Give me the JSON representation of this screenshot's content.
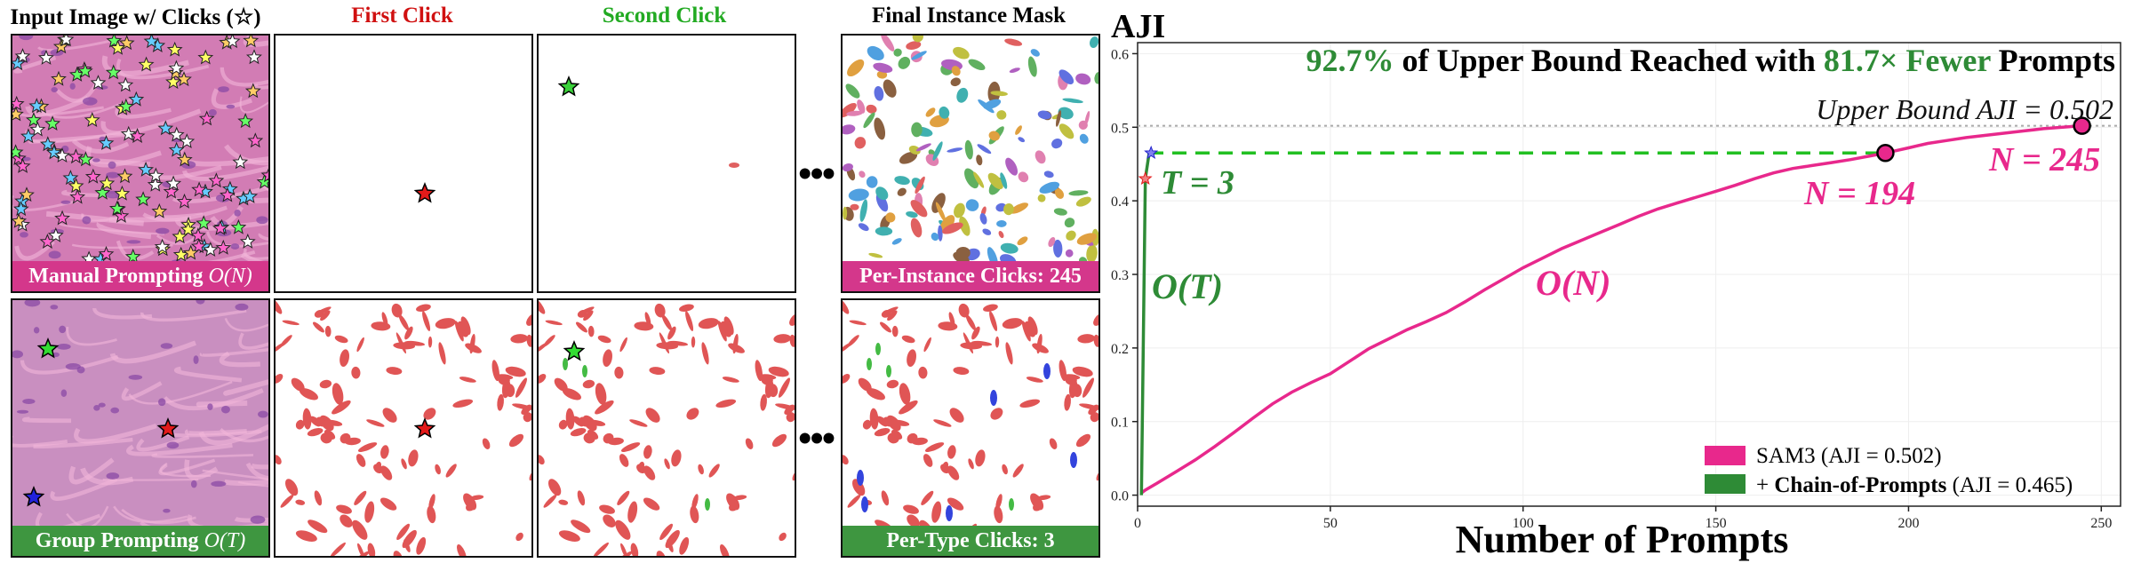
{
  "columns": {
    "input": "Input Image w/ Clicks (☆)",
    "first": "First Click",
    "second": "Second Click",
    "final": "Final Instance Mask"
  },
  "colors": {
    "first": "#cc1111",
    "second": "#22aa22",
    "pink": "#e8288c",
    "green": "#2e8b36"
  },
  "banners": {
    "manual_prefix": "Manual Prompting ",
    "manual_math": "O(N)",
    "group_prefix": "Group Prompting ",
    "group_math": "O(T)",
    "per_instance": "Per-Instance Clicks: 245",
    "per_type": "Per-Type Clicks: 3"
  },
  "ellipsis": "•••",
  "chart_data": {
    "type": "line",
    "ylabel": "AJI",
    "xlabel": "Number of Prompts",
    "xlim": [
      0,
      255
    ],
    "ylim": [
      -0.015,
      0.615
    ],
    "xticks": [
      0,
      50,
      100,
      150,
      200,
      250
    ],
    "yticks": [
      0.0,
      0.1,
      0.2,
      0.3,
      0.4,
      0.5,
      0.6
    ],
    "headline": {
      "p1": "92.7%",
      "p2": " of Upper Bound Reached with ",
      "p3": "81.7× Fewer",
      "p4": " Prompts"
    },
    "upper_bound": {
      "value": 0.502,
      "label": "Upper Bound AJI = 0.502"
    },
    "dashed_level": 0.465,
    "series": [
      {
        "name": "SAM3 (AJI = 0.502)",
        "color": "#e8288c",
        "x": [
          1,
          2,
          5,
          10,
          15,
          20,
          25,
          30,
          35,
          40,
          45,
          50,
          55,
          60,
          65,
          70,
          75,
          80,
          85,
          90,
          95,
          100,
          105,
          110,
          115,
          120,
          125,
          130,
          135,
          140,
          145,
          150,
          155,
          160,
          165,
          170,
          175,
          180,
          185,
          190,
          194,
          200,
          205,
          210,
          215,
          220,
          225,
          230,
          235,
          240,
          245
        ],
        "y": [
          0.003,
          0.007,
          0.016,
          0.032,
          0.048,
          0.066,
          0.085,
          0.105,
          0.124,
          0.14,
          0.153,
          0.165,
          0.182,
          0.199,
          0.212,
          0.225,
          0.236,
          0.248,
          0.263,
          0.279,
          0.294,
          0.309,
          0.322,
          0.335,
          0.346,
          0.357,
          0.368,
          0.379,
          0.389,
          0.397,
          0.405,
          0.413,
          0.421,
          0.43,
          0.438,
          0.444,
          0.448,
          0.452,
          0.456,
          0.461,
          0.465,
          0.472,
          0.478,
          0.482,
          0.486,
          0.489,
          0.492,
          0.495,
          0.498,
          0.5,
          0.502
        ]
      },
      {
        "name": "Chain-of-Prompts (AJI = 0.465)",
        "legend_prefix": "+ ",
        "legend_bold": "Chain-of-Prompts",
        "legend_suffix": " (AJI = 0.465)",
        "color": "#2e8b36",
        "x": [
          1,
          2,
          3
        ],
        "y": [
          0.0,
          0.43,
          0.465
        ]
      }
    ],
    "points": [
      {
        "x": 194,
        "y": 0.465,
        "label": "N = 194"
      },
      {
        "x": 245,
        "y": 0.502,
        "label": "N = 245"
      }
    ],
    "annotations": {
      "t_label": "T = 3",
      "ot": "O(T)",
      "on": "O(N)"
    }
  }
}
